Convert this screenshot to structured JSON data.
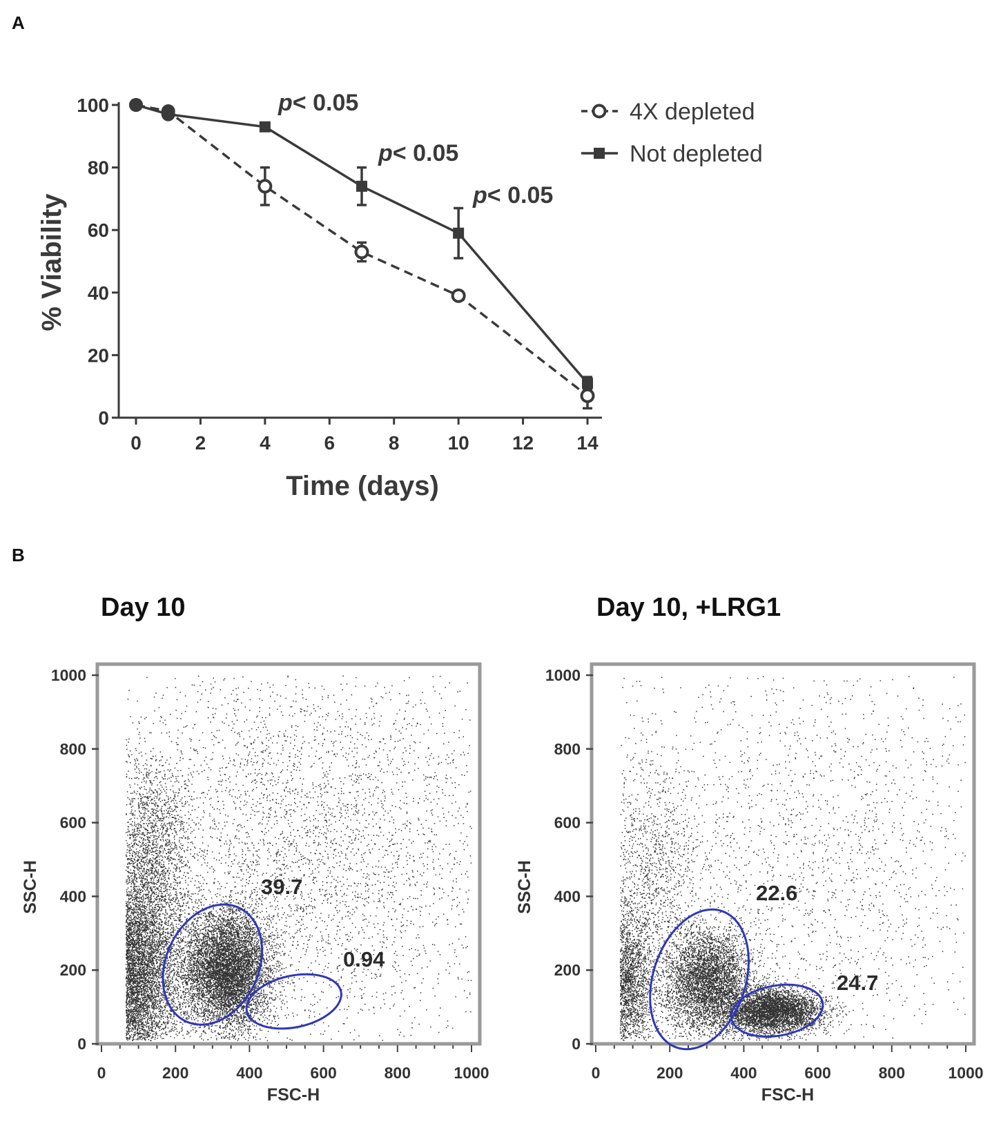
{
  "chart_data": [
    {
      "panel": "A",
      "type": "line",
      "title": "",
      "xlabel": "Time (days)",
      "ylabel": "% Viability",
      "xlim": [
        0,
        14
      ],
      "ylim": [
        0,
        100
      ],
      "xticks": [
        0,
        2,
        4,
        6,
        8,
        10,
        12,
        14
      ],
      "yticks": [
        0,
        20,
        40,
        60,
        80,
        100
      ],
      "x": [
        0,
        1,
        4,
        7,
        10,
        14
      ],
      "series": [
        {
          "name": "4X depleted",
          "values": [
            100,
            98,
            74,
            53,
            39,
            7
          ],
          "errors": [
            0,
            0,
            6,
            3,
            0,
            4
          ],
          "line_style": "dashed",
          "marker": "open-circle",
          "color": "#3a3a3a"
        },
        {
          "name": "Not depleted",
          "values": [
            100,
            97,
            93,
            74,
            59,
            11
          ],
          "errors": [
            0,
            0,
            0,
            6,
            8,
            2
          ],
          "line_style": "solid",
          "marker": "square",
          "color": "#3a3a3a"
        }
      ],
      "annotations": [
        {
          "text_prefix": "p",
          "text_suffix": "< 0.05",
          "x": 4
        },
        {
          "text_prefix": "p",
          "text_suffix": "< 0.05",
          "x": 7
        },
        {
          "text_prefix": "p",
          "text_suffix": "< 0.05",
          "x": 10
        }
      ],
      "legend": "top-right",
      "grid": false
    },
    {
      "panel": "B",
      "type": "scatter",
      "title": "Day 10",
      "xlabel": "FSC-H",
      "ylabel": "SSC-H",
      "xlim": [
        0,
        1000
      ],
      "ylim": [
        0,
        1000
      ],
      "xticks": [
        0,
        200,
        400,
        600,
        800,
        1000
      ],
      "yticks": [
        0,
        200,
        400,
        600,
        800,
        1000
      ],
      "gates": [
        {
          "label": "39.7",
          "cx": 300,
          "cy": 215,
          "rx": 125,
          "ry": 170,
          "rot": 25
        },
        {
          "label": "0.94",
          "cx": 520,
          "cy": 115,
          "rx": 130,
          "ry": 70,
          "rot": -12
        }
      ],
      "gate_color": "#2f38b8",
      "density": [
        {
          "cx": 70,
          "cy": 180,
          "sx": 70,
          "sy": 130,
          "n": 9000
        },
        {
          "cx": 340,
          "cy": 200,
          "sx": 60,
          "sy": 80,
          "n": 7000
        },
        {
          "cx": 130,
          "cy": 500,
          "sx": 55,
          "sy": 140,
          "n": 2200
        },
        {
          "cx": 550,
          "cy": 550,
          "sx": 300,
          "sy": 300,
          "n": 4500
        }
      ]
    },
    {
      "panel": "B",
      "type": "scatter",
      "title": "Day 10, +LRG1",
      "xlabel": "FSC-H",
      "ylabel": "SSC-H",
      "xlim": [
        0,
        1000
      ],
      "ylim": [
        0,
        1000
      ],
      "xticks": [
        0,
        200,
        400,
        600,
        800,
        1000
      ],
      "yticks": [
        0,
        200,
        400,
        600,
        800,
        1000
      ],
      "gates": [
        {
          "label": "22.6",
          "cx": 280,
          "cy": 175,
          "rx": 125,
          "ry": 195,
          "rot": 18
        },
        {
          "label": "24.7",
          "cx": 490,
          "cy": 90,
          "rx": 125,
          "ry": 68,
          "rot": -10
        }
      ],
      "gate_color": "#2f38b8",
      "density": [
        {
          "cx": 75,
          "cy": 170,
          "sx": 40,
          "sy": 100,
          "n": 3000
        },
        {
          "cx": 300,
          "cy": 170,
          "sx": 60,
          "sy": 70,
          "n": 4500
        },
        {
          "cx": 480,
          "cy": 90,
          "sx": 65,
          "sy": 30,
          "n": 4200
        },
        {
          "cx": 150,
          "cy": 480,
          "sx": 60,
          "sy": 140,
          "n": 900
        },
        {
          "cx": 550,
          "cy": 500,
          "sx": 320,
          "sy": 300,
          "n": 2400
        }
      ]
    }
  ],
  "labels": {
    "panel_a": "A",
    "panel_b": "B"
  }
}
